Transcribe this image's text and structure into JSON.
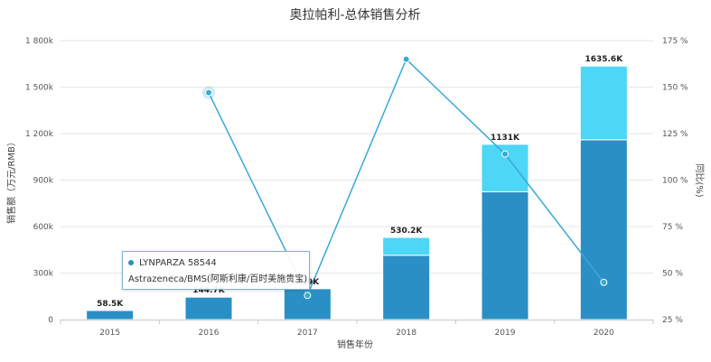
{
  "chart_data": {
    "type": "bar",
    "title": "奥拉帕利-总体销售分析",
    "xlabel": "销售年份",
    "ylabel": "销售额（万元/RMB）",
    "y2label": "同比(%)",
    "categories": [
      "2015",
      "2016",
      "2017",
      "2018",
      "2019",
      "2020"
    ],
    "ylim": [
      0,
      1800000
    ],
    "y_ticks": [
      "0",
      "300k",
      "600k",
      "900k",
      "1 200k",
      "1 500k",
      "1 800k"
    ],
    "y2lim": [
      25,
      175
    ],
    "y2_ticks": [
      "25 %",
      "50 %",
      "75 %",
      "100 %",
      "125 %",
      "150 %",
      "175 %"
    ],
    "stacked": true,
    "series": [
      {
        "type": "bar",
        "values": [
          58500,
          144700,
          199000,
          415000,
          825000,
          1160000
        ],
        "color": "#2a8fc4"
      },
      {
        "type": "bar",
        "values": [
          0,
          0,
          0,
          115200,
          306000,
          475600
        ],
        "color": "#4dd6f5"
      },
      {
        "type": "line",
        "axis": "right",
        "values": [
          null,
          147,
          38,
          165,
          114,
          45
        ],
        "color": "#3aa8d8"
      }
    ],
    "totals": [
      58500,
      144700,
      199000,
      530200,
      1131000,
      1635600
    ],
    "data_labels": [
      "58.5K",
      "144.7K",
      "199K",
      "530.2K",
      "1131K",
      "1635.6K"
    ],
    "grid": true
  },
  "tooltip": {
    "line1": "LYNPARZA 58544",
    "line2": "Astrazeneca/BMS(阿斯利康/百时美施贵宝)"
  }
}
